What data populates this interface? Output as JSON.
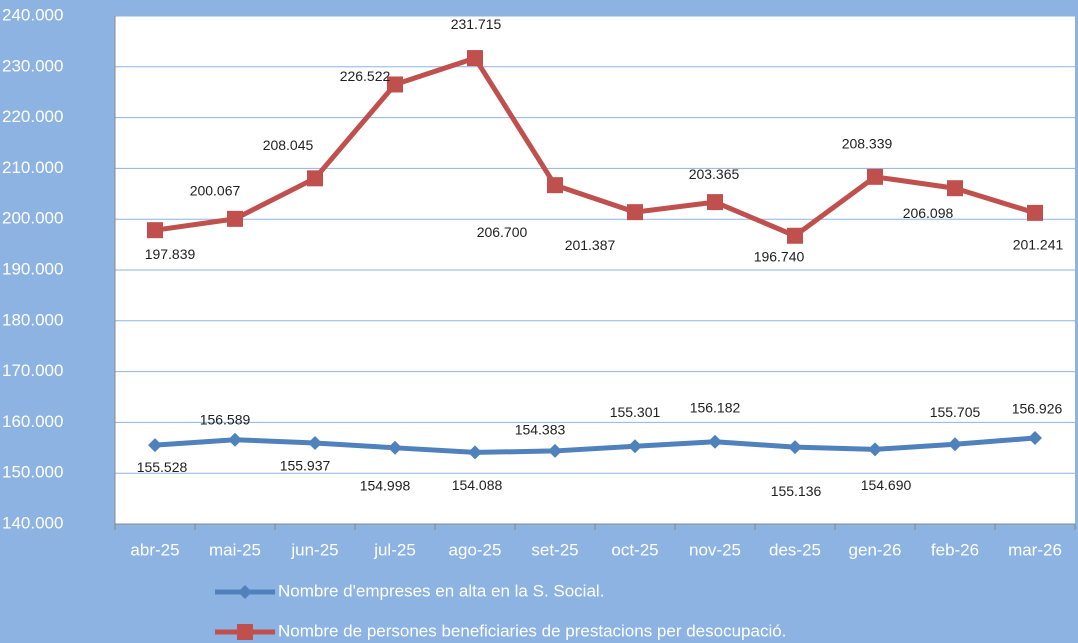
{
  "chart_data": {
    "type": "line",
    "categories": [
      "abr-25",
      "mai-25",
      "jun-25",
      "jul-25",
      "ago-25",
      "set-25",
      "oct-25",
      "nov-25",
      "des-25",
      "gen-26",
      "feb-26",
      "mar-26"
    ],
    "series": [
      {
        "name": "Nombre d'empreses en alta en la S. Social.",
        "color": "#4f81bd",
        "marker": "diamond",
        "values": [
          155528,
          156589,
          155937,
          154998,
          154088,
          154383,
          155301,
          156182,
          155136,
          154690,
          155705,
          156926
        ],
        "value_labels": [
          "155.528",
          "156.589",
          "155.937",
          "154.998",
          "154.088",
          "154.383",
          "155.301",
          "156.182",
          "155.136",
          "154.690",
          "155.705",
          "156.926"
        ]
      },
      {
        "name": "Nombre de persones beneficiaries de prestacions per desocupació.",
        "color": "#c0504d",
        "marker": "square",
        "values": [
          197839,
          200067,
          208045,
          226522,
          231715,
          206700,
          201387,
          203365,
          196740,
          208339,
          206098,
          201241
        ],
        "value_labels": [
          "197.839",
          "200.067",
          "208.045",
          "226.522",
          "231.715",
          "206.700",
          "201.387",
          "203.365",
          "196.740",
          "208.339",
          "206.098",
          "201.241"
        ]
      }
    ],
    "ylim": [
      140000,
      240000
    ],
    "yticks": [
      {
        "value": 140000,
        "label": "140.000"
      },
      {
        "value": 150000,
        "label": "150.000"
      },
      {
        "value": 160000,
        "label": "160.000"
      },
      {
        "value": 170000,
        "label": "170.000"
      },
      {
        "value": 180000,
        "label": "180.000"
      },
      {
        "value": 190000,
        "label": "190.000"
      },
      {
        "value": 200000,
        "label": "200.000"
      },
      {
        "value": 210000,
        "label": "210.000"
      },
      {
        "value": 220000,
        "label": "220.000"
      },
      {
        "value": 230000,
        "label": "230.000"
      },
      {
        "value": 240000,
        "label": "240.000"
      }
    ],
    "grid": true,
    "legend": "bottom"
  }
}
